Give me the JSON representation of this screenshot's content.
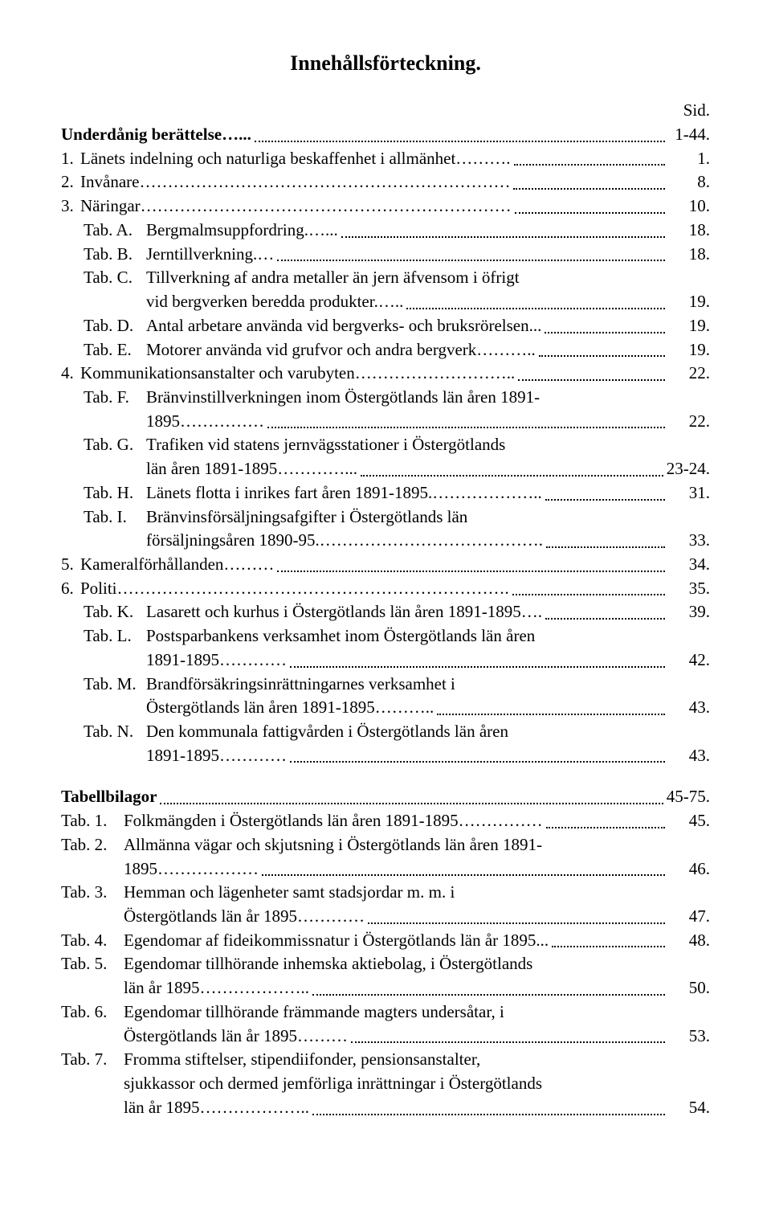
{
  "title": "Innehållsförteckning.",
  "page_col_header": "Sid.",
  "entries": [
    {
      "level": 0,
      "bold": true,
      "label": "",
      "text": "Underdånig berättelse…...",
      "page": "1-44."
    },
    {
      "level": 0,
      "label": "1.",
      "text": "Länets indelning och naturliga beskaffenhet i allmänhet……….",
      "page": "1."
    },
    {
      "level": 0,
      "label": "2.",
      "text": "Invånare…………………………………………………………",
      "page": "8."
    },
    {
      "level": 0,
      "label": "3.",
      "text": "Näringar…………………………………………………………",
      "page": "10."
    },
    {
      "level": 1,
      "label": "Tab. A.",
      "text": "Bergmalmsuppfordring.…...",
      "page": "18."
    },
    {
      "level": 1,
      "label": "Tab. B.",
      "text": "Jerntillverkning.…",
      "page": "18."
    },
    {
      "level": 1,
      "label": "Tab. C.",
      "text": "Tillverkning af andra metaller än jern äfvensom i öfrigt",
      "wrap": true,
      "wrap_text": "vid bergverken beredda produkter.…..",
      "page": "19."
    },
    {
      "level": 1,
      "label": "Tab. D.",
      "text": "Antal arbetare använda vid bergverks- och bruksrörelsen...",
      "page": "19."
    },
    {
      "level": 1,
      "label": "Tab. E.",
      "text": "Motorer använda vid grufvor och andra bergverk………..",
      "page": "19."
    },
    {
      "level": 0,
      "label": "4.",
      "text": "Kommunikationsanstalter och varubyten………………………..",
      "page": "22."
    },
    {
      "level": 1,
      "label": "Tab. F.",
      "text": "Bränvinstillverkningen inom Östergötlands län åren 1891-",
      "wrap": true,
      "wrap_text": "1895……………",
      "page": "22."
    },
    {
      "level": 1,
      "label": "Tab. G.",
      "text": "Trafiken vid statens jernvägsstationer i Östergötlands",
      "wrap": true,
      "wrap_text": "län åren 1891-1895…………...",
      "page": "23-24."
    },
    {
      "level": 1,
      "label": "Tab. H.",
      "text": "Länets flotta i inrikes fart åren 1891-1895.………………..",
      "page": "31."
    },
    {
      "level": 1,
      "label": "Tab. I.",
      "text": "Bränvinsförsäljningsafgifter i Östergötlands län",
      "wrap": true,
      "wrap_text": "försäljningsåren 1890-95.………………………………….",
      "page": "33."
    },
    {
      "level": 0,
      "label": "5.",
      "text": "Kameralförhållanden………",
      "page": "34."
    },
    {
      "level": 0,
      "label": "6.",
      "text": "Politi…………………………………………………………….",
      "page": "35."
    },
    {
      "level": 1,
      "label": "Tab. K.",
      "text": "Lasarett och kurhus i Östergötlands län åren 1891-1895….",
      "page": "39."
    },
    {
      "level": 1,
      "label": "Tab. L.",
      "text": "Postsparbankens verksamhet inom Östergötlands län åren",
      "wrap": true,
      "wrap_text": "1891-1895…………",
      "page": "42."
    },
    {
      "level": 1,
      "label": "Tab. M.",
      "text": "Brandförsäkringsinrättningarnes verksamhet i",
      "wrap": true,
      "wrap_text": "Östergötlands län åren 1891-1895………..",
      "page": "43."
    },
    {
      "level": 1,
      "label": "Tab. N.",
      "text": "Den kommunala fattigvården i Östergötlands län åren",
      "wrap": true,
      "wrap_text": "1891-1895…………",
      "page": "43."
    }
  ],
  "appendix_header": {
    "label": "Tabellbilagor",
    "dots": "……………..……………………………………..…...……",
    "page": "45-75."
  },
  "appendix": [
    {
      "label": "Tab. 1.",
      "text": "Folkmängden i Östergötlands län åren 1891-1895……………",
      "page": "45."
    },
    {
      "label": "Tab. 2.",
      "text": "Allmänna vägar och skjutsning i Östergötlands län åren 1891-",
      "wrap": true,
      "wrap_text": "1895………………",
      "page": "46."
    },
    {
      "label": "Tab. 3.",
      "text": "Hemman och lägenheter samt stadsjordar m. m. i",
      "wrap": true,
      "wrap_text": "Östergötlands län år 1895…………",
      "page": "47."
    },
    {
      "label": "Tab. 4.",
      "text": "Egendomar af fideikommissnatur i Östergötlands län år 1895...",
      "page": "48."
    },
    {
      "label": "Tab. 5.",
      "text": "Egendomar tillhörande inhemska aktiebolag, i Östergötlands",
      "wrap": true,
      "wrap_text": "län år 1895………………..",
      "page": "50."
    },
    {
      "label": "Tab. 6.",
      "text": "Egendomar tillhörande främmande magters undersåtar, i",
      "wrap": true,
      "wrap_text": "Östergötlands län år 1895………",
      "page": "53."
    },
    {
      "label": "Tab. 7.",
      "text": "Fromma stiftelser, stipendiifonder, pensionsanstalter,",
      "wrap": true,
      "wrap_text": "sjukkassor och dermed jemförliga inrättningar i Östergötlands",
      "wrap2": true,
      "wrap_text2": "län år 1895………………..",
      "page": "54."
    }
  ]
}
